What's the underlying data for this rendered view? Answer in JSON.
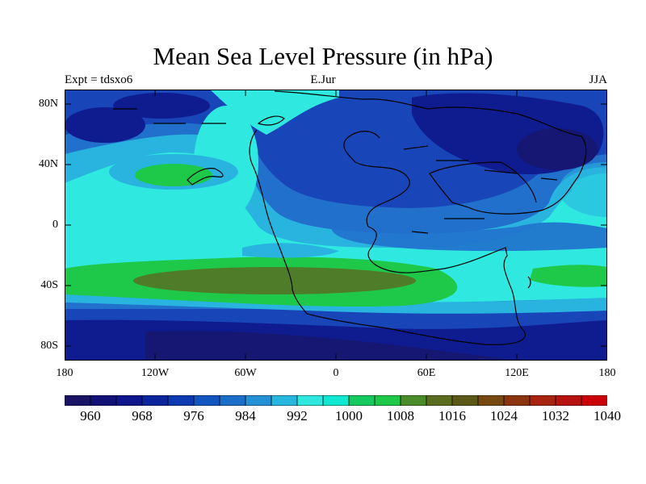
{
  "title": "Mean Sea Level Pressure (in hPa)",
  "subtitle_left": "Expt = tdsxo6",
  "subtitle_center": "E.Jur",
  "subtitle_right": "JJA",
  "lat_labels": [
    "80N",
    "40N",
    "0",
    "40S",
    "80S"
  ],
  "lon_labels": [
    "180",
    "120W",
    "60W",
    "0",
    "60E",
    "120E",
    "180"
  ],
  "colorbar": {
    "labels": [
      "960",
      "968",
      "976",
      "984",
      "992",
      "1000",
      "1008",
      "1016",
      "1024",
      "1032",
      "1040"
    ],
    "colors": [
      "#1a1466",
      "#111177",
      "#0f158a",
      "#0c249c",
      "#0d3ab0",
      "#1255c0",
      "#1a6ec8",
      "#2490d6",
      "#27b6e0",
      "#2ee8e0",
      "#10e8d2",
      "#14c95e",
      "#1ec94a",
      "#4a8c2a",
      "#5a6d1f",
      "#5c5818",
      "#784811",
      "#8b3410",
      "#a82410",
      "#b81210",
      "#cc0008"
    ]
  },
  "map_colors": {
    "deep": "#151773",
    "dark": "#0f1c8f",
    "blue": "#1845b8",
    "mid": "#2170cc",
    "light": "#28b4df",
    "cyan": "#2fe9e0",
    "green": "#1ec94a",
    "olive": "#4f7c28",
    "coast": "#000000"
  }
}
